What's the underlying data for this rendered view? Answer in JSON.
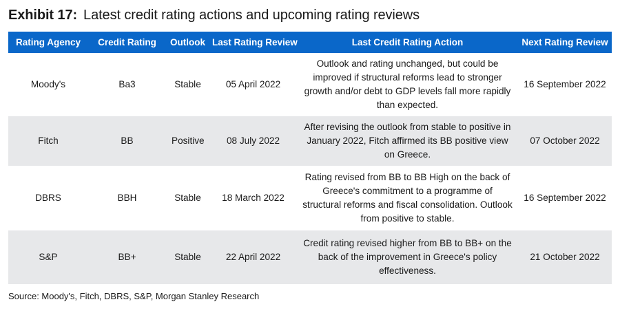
{
  "exhibit": {
    "label": "Exhibit 17:",
    "title": "Latest credit rating actions and upcoming rating reviews"
  },
  "table": {
    "headers": {
      "agency": "Rating Agency",
      "rating": "Credit Rating",
      "outlook": "Outlook",
      "last_review": "Last Rating Review",
      "last_action": "Last Credit Rating Action",
      "next_review": "Next Rating Review"
    },
    "rows": [
      {
        "agency": "Moody's",
        "rating": "Ba3",
        "outlook": "Stable",
        "last_review": "05 April 2022",
        "last_action": "Outlook and rating unchanged, but could be improved if structural reforms lead to stronger growth and/or debt to GDP levels fall more rapidly than expected.",
        "next_review": "16 September 2022"
      },
      {
        "agency": "Fitch",
        "rating": "BB",
        "outlook": "Positive",
        "last_review": "08 July 2022",
        "last_action": "After revising the outlook from stable to positive in January 2022, Fitch affirmed its BB positive view on Greece.",
        "next_review": "07 October 2022"
      },
      {
        "agency": "DBRS",
        "rating": "BBH",
        "outlook": "Stable",
        "last_review": "18 March 2022",
        "last_action": "Rating revised from BB to BB High on the back of Greece's commitment to a programme of structural reforms and fiscal consolidation. Outlook from positive to stable.",
        "next_review": "16 September 2022"
      },
      {
        "agency": "S&P",
        "rating": "BB+",
        "outlook": "Stable",
        "last_review": "22 April 2022",
        "last_action": "Credit rating revised higher from BB to BB+ on the back of the improvement in Greece's policy effectiveness.",
        "next_review": "21 October 2022"
      }
    ]
  },
  "source": "Source: Moody's, Fitch, DBRS, S&P, Morgan Stanley Research",
  "colors": {
    "header_bg": "#0a67c9",
    "header_text": "#ffffff",
    "row_alt_bg": "#e7e8ea"
  }
}
